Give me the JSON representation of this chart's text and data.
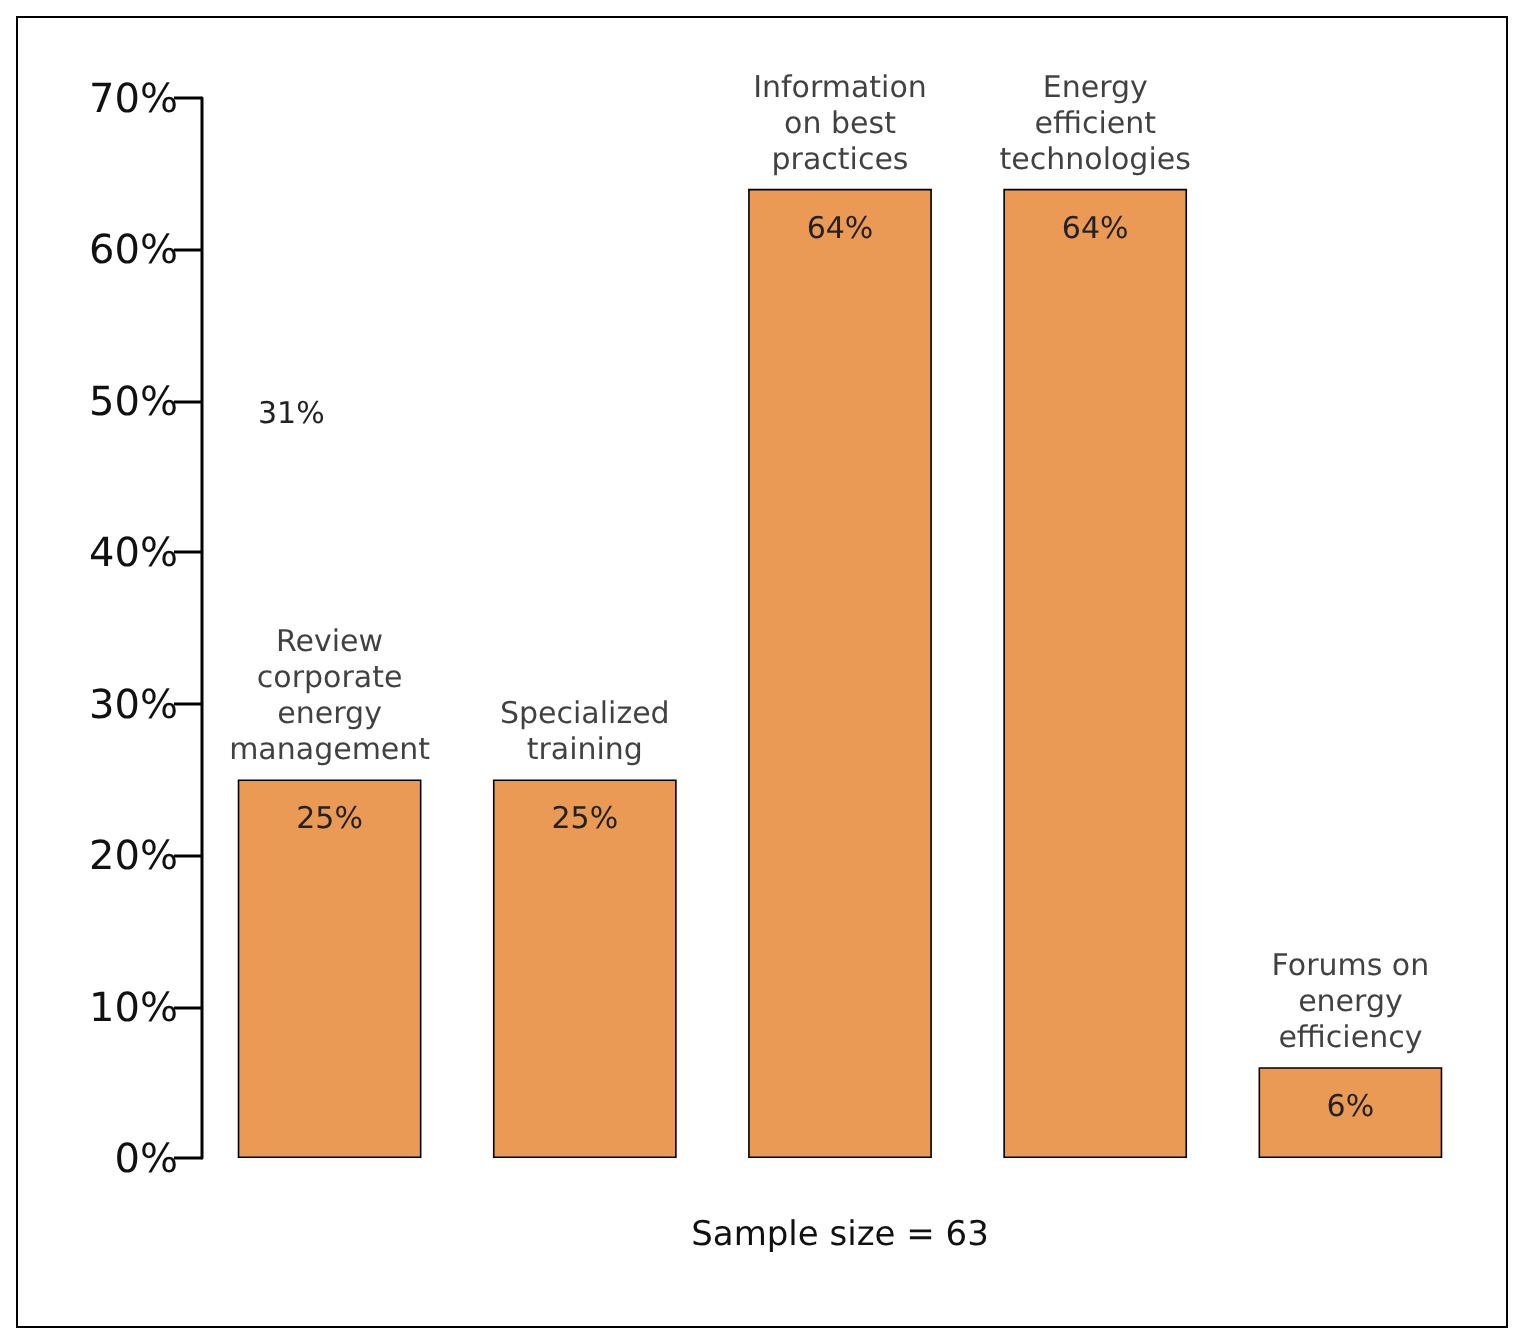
{
  "chart_data": {
    "type": "bar",
    "categories": [
      "Review corporate energy management",
      "Specialized training",
      "Information on best practices",
      "Energy efficient technologies",
      "Forums on energy efficiency"
    ],
    "values": [
      25,
      25,
      64,
      64,
      6
    ],
    "value_labels": [
      "25%",
      "25%",
      "64%",
      "64%",
      "6%"
    ],
    "color": "#eb9a55",
    "xlabel": "Sample size = 63",
    "annotations": [
      "31%"
    ],
    "ylim": [
      0,
      70
    ],
    "yticks": [
      {
        "value": 0,
        "label": "0%"
      },
      {
        "value": 10,
        "label": "10%"
      },
      {
        "value": 20,
        "label": "20%"
      },
      {
        "value": 30,
        "label": "30%"
      },
      {
        "value": 40,
        "label": "40%"
      },
      {
        "value": 50,
        "label": "50%"
      },
      {
        "value": 60,
        "label": "60%"
      },
      {
        "value": 70,
        "label": "70%"
      }
    ],
    "grid": false
  }
}
